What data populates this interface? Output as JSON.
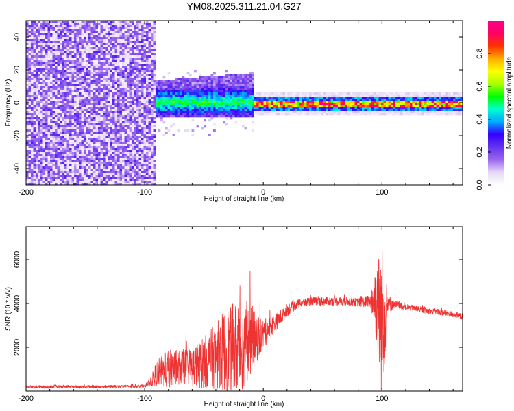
{
  "title": "YM08.2025.311.21.04.G27",
  "chart_data": [
    {
      "type": "heatmap",
      "xlabel": "Height of straight line (km)",
      "ylabel": "Frequency (Hz)",
      "xlim": [
        -200,
        168
      ],
      "ylim": [
        -50,
        50
      ],
      "xticks": [
        -200,
        -100,
        0,
        100
      ],
      "xtick_labels": [
        "-200",
        "-100",
        "0",
        "100"
      ],
      "yticks": [
        -40,
        -20,
        0,
        20,
        40
      ],
      "ytick_labels": [
        "-40",
        "-20",
        "0",
        "20",
        "40"
      ],
      "colorbar": {
        "label": "Normalized spectral amplitude",
        "range": [
          0.0,
          1.0
        ],
        "ticks": [
          0.0,
          0.2,
          0.4,
          0.6,
          0.8
        ],
        "tick_labels": [
          "0.0",
          "0.2",
          "0.4",
          "0.6",
          "0.8"
        ],
        "stops": [
          "#ffffff",
          "#e6d9f5",
          "#9966ee",
          "#6633ee",
          "#3300ff",
          "#00aaff",
          "#00ffcc",
          "#00ff00",
          "#aaff00",
          "#ffff00",
          "#ffaa00",
          "#ff3300",
          "#ff0066",
          "#ff0088"
        ]
      },
      "regions": [
        {
          "x_range": [
            -200,
            -92
          ],
          "description_level": "noise",
          "freq_spread": [
            -50,
            50
          ],
          "amplitude": 0.12
        },
        {
          "x_range": [
            -92,
            -8
          ],
          "description_level": "band",
          "freq_spread": [
            -8,
            14
          ],
          "amplitude": 0.35
        },
        {
          "x_range": [
            -8,
            168
          ],
          "description_level": "narrow line",
          "freq_spread": [
            -3,
            3
          ],
          "amplitude": 0.85
        }
      ]
    },
    {
      "type": "line",
      "xlabel": "Height of straight line (km)",
      "ylabel": "SNR (10 * v/v)",
      "xlim": [
        -200,
        168
      ],
      "ylim": [
        0,
        7500
      ],
      "xticks": [
        -200,
        -100,
        0,
        100
      ],
      "xtick_labels": [
        "-200",
        "-100",
        "0",
        "100"
      ],
      "yticks": [
        2000,
        4000,
        6000
      ],
      "ytick_labels": [
        "2000",
        "4000",
        "6000"
      ],
      "color": "#ee3333",
      "series": [
        {
          "name": "SNR",
          "x": [
            -200,
            -150,
            -100,
            -95,
            -90,
            -80,
            -70,
            -60,
            -50,
            -40,
            -30,
            -20,
            -10,
            0,
            10,
            20,
            30,
            40,
            50,
            60,
            70,
            80,
            90,
            95,
            100,
            105,
            110,
            120,
            130,
            140,
            150,
            160,
            168
          ],
          "values": [
            200,
            200,
            230,
            400,
            800,
            1000,
            1100,
            1100,
            1300,
            1600,
            1900,
            2000,
            2300,
            2600,
            3100,
            3700,
            4000,
            4100,
            4100,
            4100,
            4100,
            4050,
            4100,
            4200,
            3000,
            4000,
            3950,
            3850,
            3750,
            3650,
            3600,
            3500,
            3400
          ],
          "spread": [
            70,
            70,
            70,
            200,
            600,
            900,
            800,
            900,
            1200,
            1500,
            2000,
            2200,
            1500,
            700,
            400,
            300,
            200,
            200,
            200,
            200,
            200,
            200,
            300,
            1800,
            3800,
            500,
            200,
            150,
            150,
            150,
            150,
            150,
            150
          ]
        }
      ]
    }
  ]
}
